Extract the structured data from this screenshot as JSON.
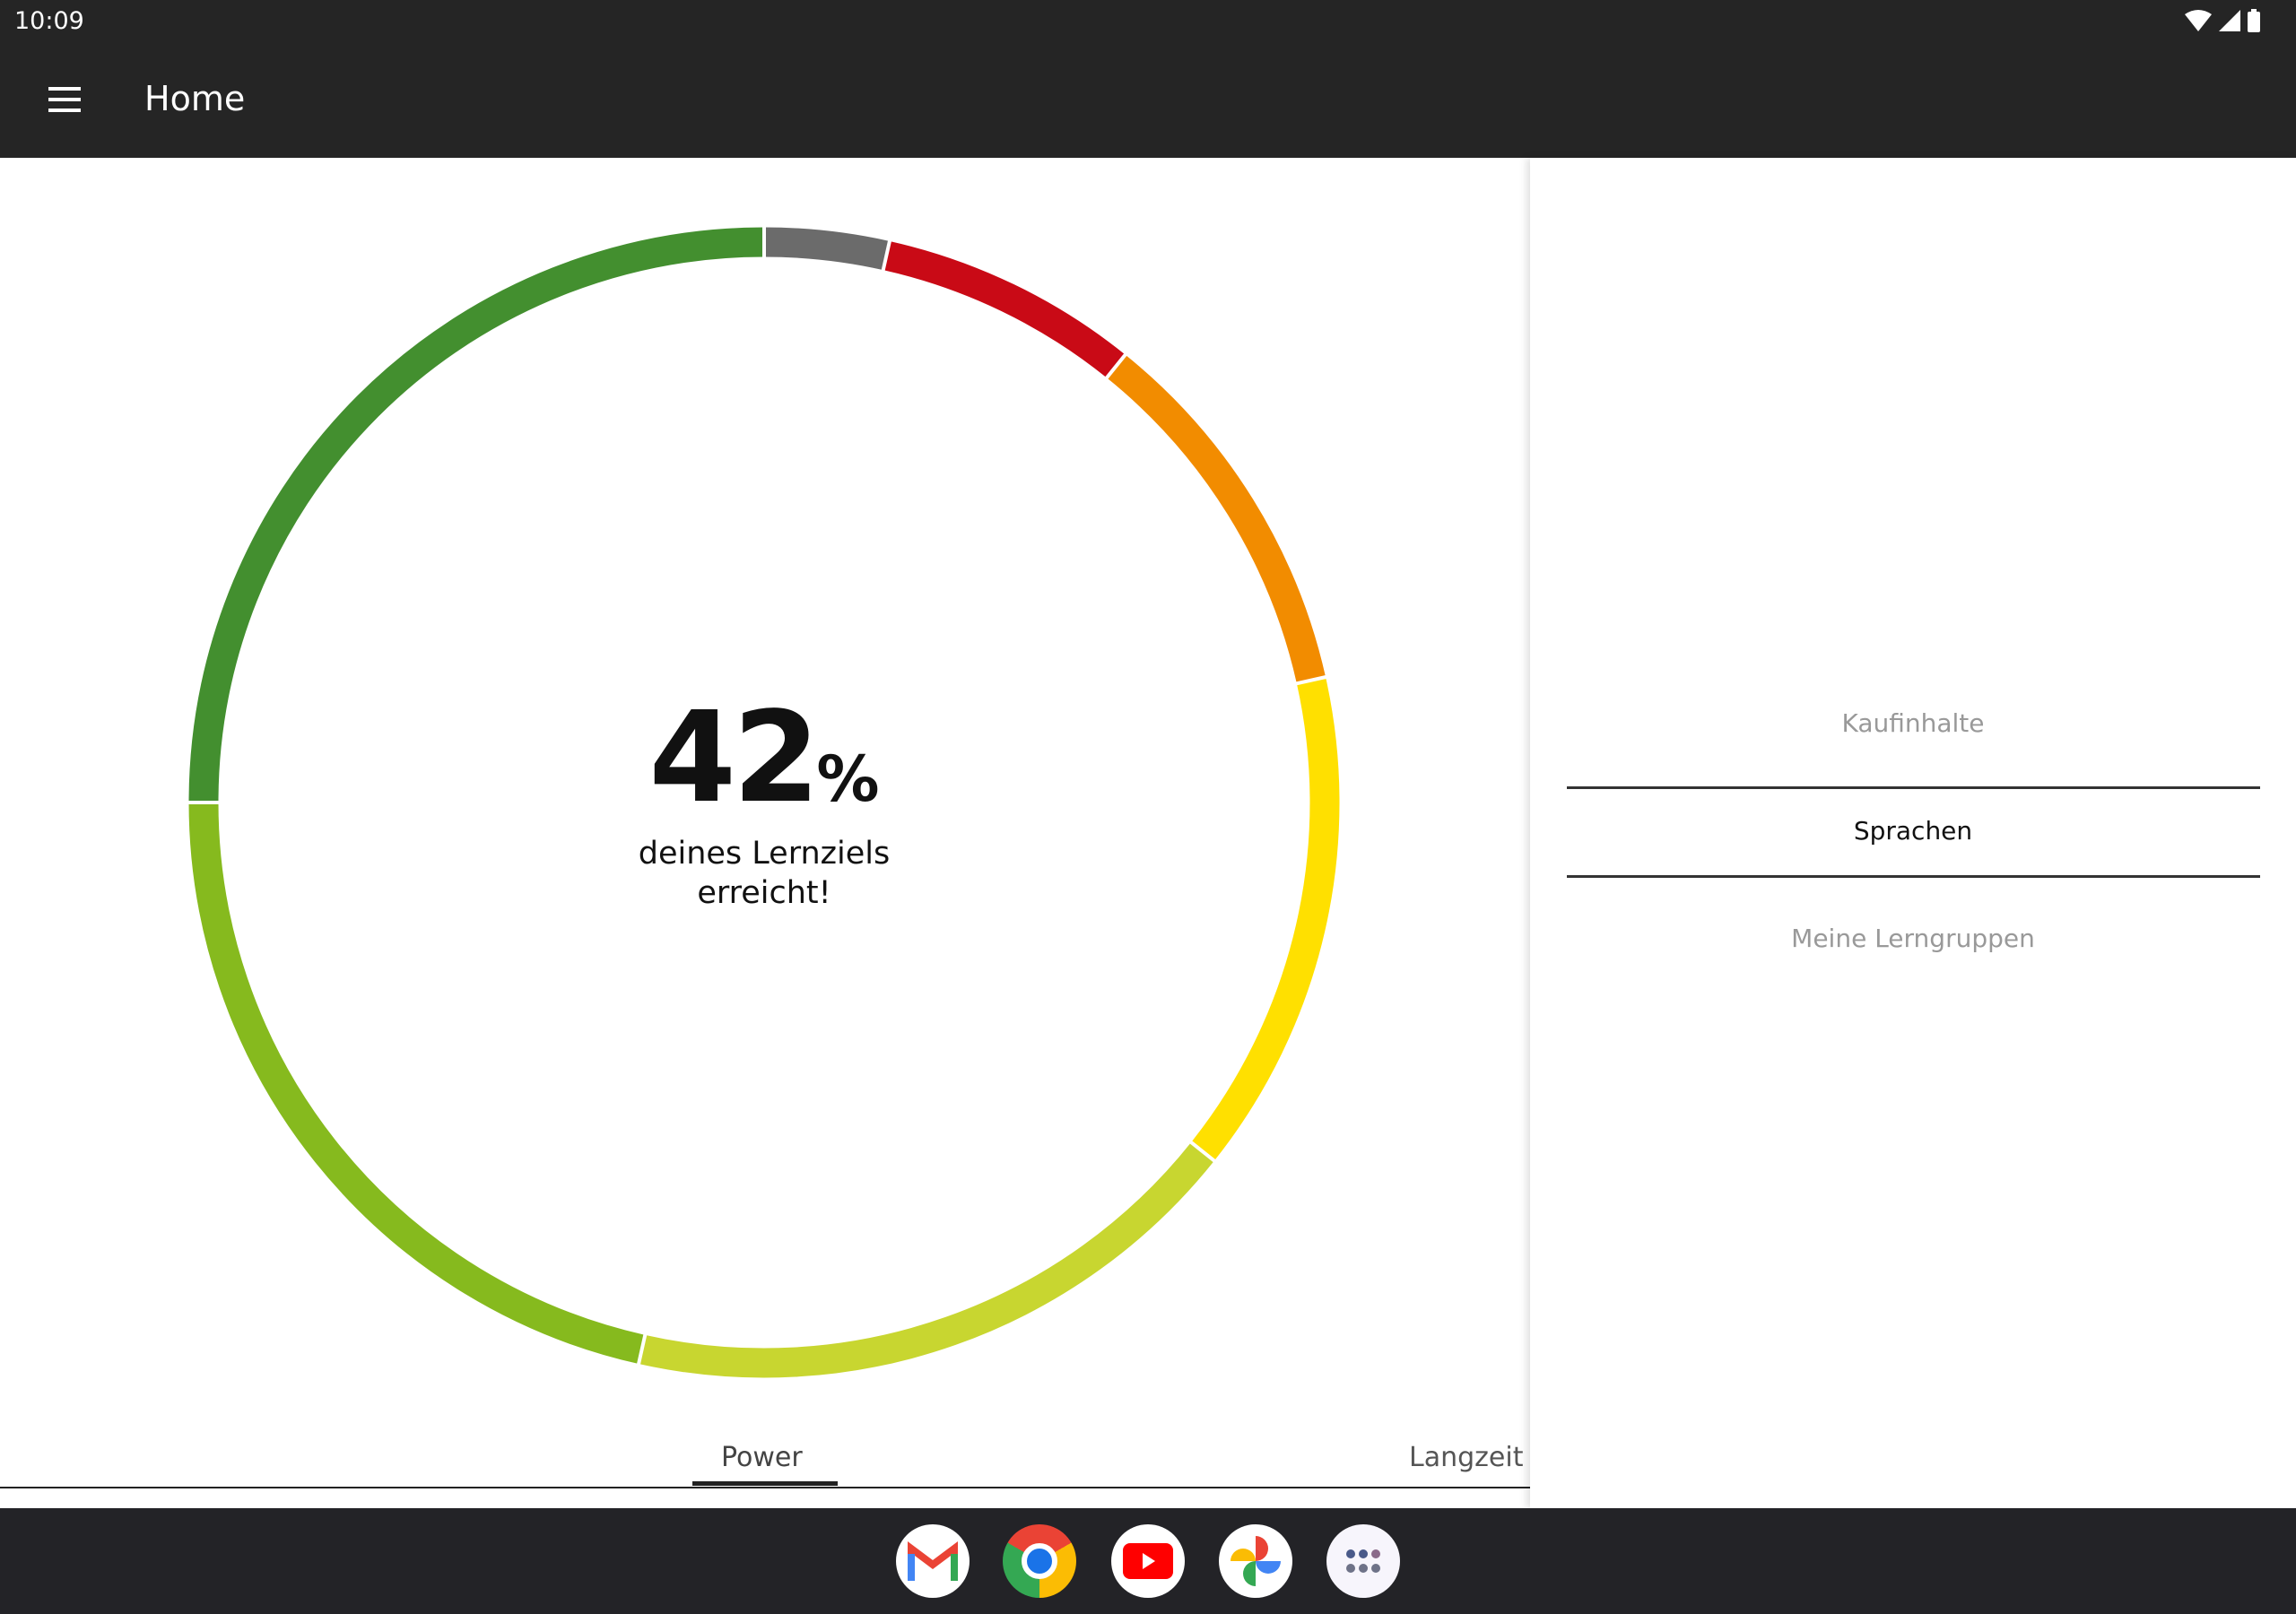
{
  "status_bar": {
    "time": "10:09",
    "icons": [
      "wifi-icon",
      "signal-icon",
      "battery-icon"
    ]
  },
  "app_bar": {
    "title": "Home",
    "menu_icon": "hamburger-menu-icon"
  },
  "progress": {
    "percent": "42",
    "percent_sign": "%",
    "caption_line1": "deines Lernziels",
    "caption_line2": "erreicht!"
  },
  "chart_data": {
    "type": "pie",
    "style": "donut",
    "segments": [
      {
        "value": 3.5,
        "color": "#6b6b6b"
      },
      {
        "value": 7.3,
        "color": "#c90a16"
      },
      {
        "value": 10.7,
        "color": "#f28c00"
      },
      {
        "value": 14.2,
        "color": "#ffe000"
      },
      {
        "value": 17.8,
        "color": "#c8d630"
      },
      {
        "value": 21.5,
        "color": "#86ba1e"
      },
      {
        "value": 25.0,
        "color": "#438f2f"
      }
    ]
  },
  "tabs": [
    {
      "label": "Power",
      "active": true
    },
    {
      "label": "Langzeit",
      "active": false
    }
  ],
  "side_menu": {
    "items": [
      {
        "label": "Kaufinhalte",
        "selected": false
      },
      {
        "label": "Sprachen",
        "selected": true
      },
      {
        "label": "Meine Lerngruppen",
        "selected": false
      }
    ]
  },
  "dock": {
    "apps": [
      "gmail-icon",
      "chrome-icon",
      "youtube-icon",
      "photos-icon",
      "app-drawer-icon"
    ]
  }
}
